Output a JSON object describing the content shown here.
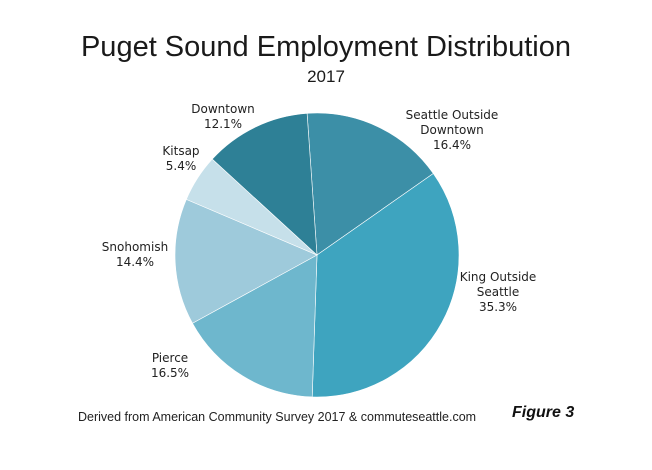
{
  "chart_data": {
    "type": "pie",
    "title": "Puget Sound Employment Distribution",
    "subtitle": "2017",
    "slices": [
      {
        "label_lines": [
          "Seattle Outside",
          "Downtown"
        ],
        "value_label": "16.4%",
        "value": 16.4,
        "color": "#3c8fa7"
      },
      {
        "label_lines": [
          "King Outside",
          "Seattle"
        ],
        "value_label": "35.3%",
        "value": 35.3,
        "color": "#3ea4bf"
      },
      {
        "label_lines": [
          "Pierce"
        ],
        "value_label": "16.5%",
        "value": 16.5,
        "color": "#6eb7cd"
      },
      {
        "label_lines": [
          "Snohomish"
        ],
        "value_label": "14.4%",
        "value": 14.4,
        "color": "#9ecadb"
      },
      {
        "label_lines": [
          "Kitsap"
        ],
        "value_label": "5.4%",
        "value": 5.4,
        "color": "#c6e0ea"
      },
      {
        "label_lines": [
          "Downtown"
        ],
        "value_label": "12.1%",
        "value": 12.1,
        "color": "#2e8096"
      }
    ]
  },
  "source_note": "Derived from American Community Survey 2017 & commuteseattle.com",
  "figure_label": "Figure 3"
}
